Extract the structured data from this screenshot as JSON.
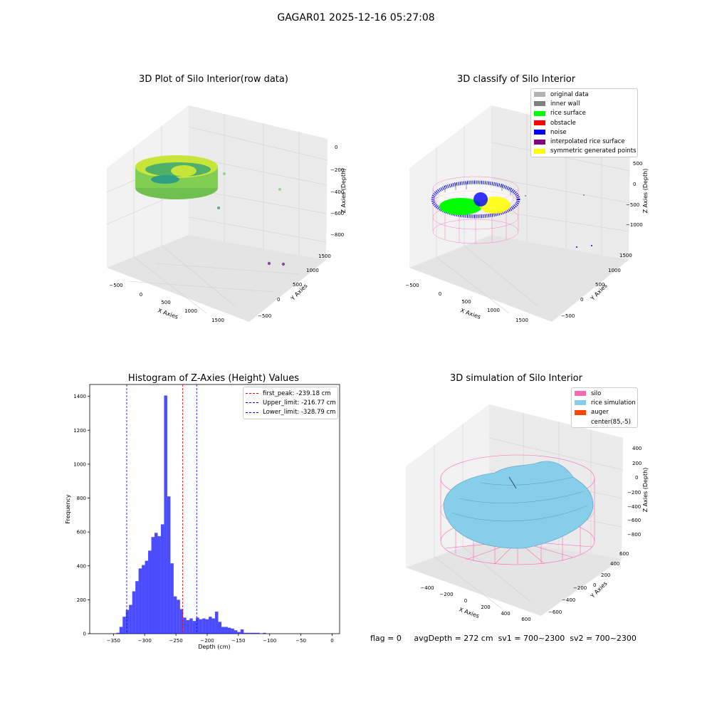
{
  "figure_title": "GAGAR01 2025-12-16 05:27:08",
  "footer": {
    "flag": "flag = 0",
    "avg_depth": "avgDepth = 272 cm",
    "sv1": "sv1 = 700~2300",
    "sv2": "sv2 = 700~2300"
  },
  "panels": {
    "raw": {
      "title": "3D Plot of Silo Interior(row data)",
      "xlabel": "X Axies",
      "ylabel": "Y Axies",
      "zlabel": "Z Axies (Depth)",
      "xticks": [
        "−500",
        "0",
        "500",
        "1000",
        "1500"
      ],
      "yticks": [
        "−500",
        "0",
        "500",
        "1000",
        "1500"
      ],
      "zticks": [
        "0",
        "−200",
        "−400",
        "−600",
        "−800"
      ]
    },
    "classify": {
      "title": "3D classify of Silo Interior",
      "xlabel": "X Axies",
      "ylabel": "Y Axies",
      "zlabel": "Z Axies (Depth)",
      "xticks": [
        "−500",
        "0",
        "500",
        "1000",
        "1500"
      ],
      "yticks": [
        "−500",
        "0",
        "500",
        "1000",
        "1500"
      ],
      "zticks": [
        "500",
        "0",
        "−500",
        "−1000"
      ],
      "legend": [
        {
          "label": "original data",
          "color": "#b3b3b3"
        },
        {
          "label": "inner wall",
          "color": "#808080"
        },
        {
          "label": "rice surface",
          "color": "#00ff00"
        },
        {
          "label": "obstacle",
          "color": "#ff0000"
        },
        {
          "label": "noise",
          "color": "#0000ff"
        },
        {
          "label": "interpolated rice surface",
          "color": "#800080"
        },
        {
          "label": "symmetric generated points",
          "color": "#ffff00"
        }
      ]
    },
    "simulation": {
      "title": "3D simulation of Silo Interior",
      "xlabel": "X Axies",
      "ylabel": "Y Axies",
      "zlabel": "Z Axies (Depth)",
      "xticks": [
        "−400",
        "−200",
        "0",
        "200",
        "400",
        "600"
      ],
      "yticks": [
        "−600",
        "−400",
        "−200",
        "0",
        "200",
        "400",
        "600"
      ],
      "zticks": [
        "400",
        "200",
        "0",
        "−200",
        "−400",
        "−600",
        "−800"
      ],
      "legend": [
        {
          "label": "silo",
          "color": "#ff69b4"
        },
        {
          "label": "rice simulation",
          "color": "#87ceeb"
        },
        {
          "label": "auger",
          "color": "#ff4500"
        },
        {
          "label": "center(85,-5)",
          "color": "#ffffff"
        }
      ]
    }
  },
  "chart_data": {
    "type": "bar",
    "title": "Histogram of Z-Axies (Height) Values",
    "xlabel": "Depth (cm)",
    "ylabel": "Frequency",
    "xlim": [
      -388,
      12
    ],
    "ylim": [
      0,
      1470
    ],
    "xticks": [
      -350,
      -300,
      -250,
      -200,
      -150,
      -100,
      -50,
      0
    ],
    "yticks": [
      0,
      200,
      400,
      600,
      800,
      1000,
      1200,
      1400
    ],
    "bar_color": "#0000ff",
    "bin_width": 5.1,
    "bin_start": -345.5,
    "values": [
      5,
      40,
      100,
      140,
      170,
      250,
      310,
      385,
      405,
      430,
      490,
      570,
      595,
      575,
      645,
      1405,
      810,
      415,
      220,
      200,
      145,
      95,
      80,
      90,
      75,
      95,
      85,
      90,
      85,
      100,
      90,
      130,
      70,
      40,
      40,
      35,
      30,
      20,
      10,
      25,
      5,
      5,
      5,
      5,
      5,
      0,
      5,
      0
    ],
    "lines": [
      {
        "label": "first_peak: -239.18 cm",
        "x": -239.18,
        "color": "#ff0000"
      },
      {
        "label": "Upper_limit: -216.77 cm",
        "x": -216.77,
        "color": "#0000ff"
      },
      {
        "label": "Lower_limit: -328.79 cm",
        "x": -328.79,
        "color": "#0000ff"
      }
    ]
  }
}
